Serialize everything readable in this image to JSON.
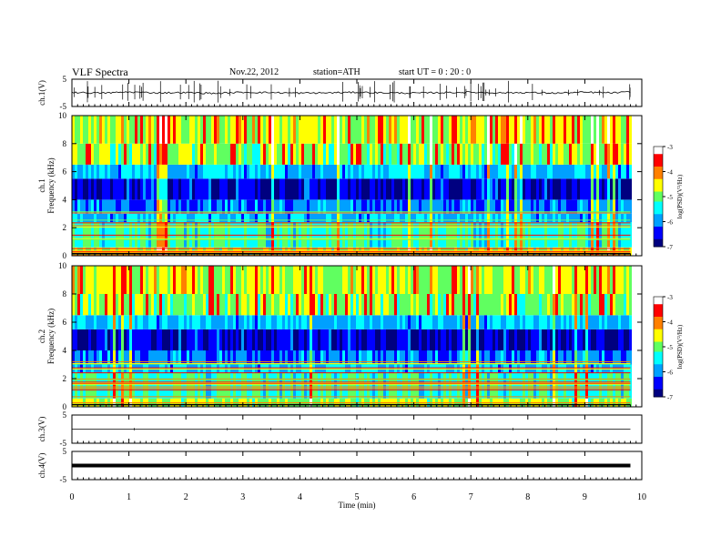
{
  "header": {
    "title": "VLF  Spectra",
    "date": "Nov.22, 2012",
    "station": "station=ATH",
    "start": "start  UT =   0  : 20 : 0"
  },
  "colors": {
    "background": "#ffffff",
    "colormap": [
      "#000080",
      "#0000ff",
      "#00a0ff",
      "#00ffff",
      "#60ff60",
      "#ffff00",
      "#ff8000",
      "#ff0000",
      "#ffffff"
    ]
  },
  "chart_data": [
    {
      "type": "line",
      "panel": "ch.1",
      "ylabel": "ch.1(V)",
      "ylim": [
        -5,
        5
      ],
      "yticks": [
        "5",
        "-5"
      ],
      "x": [
        0,
        0.5,
        1,
        1.5,
        2,
        2.5,
        3,
        3.5,
        4,
        4.5,
        5,
        5.5,
        6,
        6.5,
        7,
        7.5,
        8,
        8.5,
        9,
        9.5,
        9.8
      ],
      "values": [
        0.2,
        -0.1,
        0.3,
        0,
        0.1,
        -0.2,
        0.2,
        0.1,
        -0.1,
        0,
        0.2,
        0,
        -0.1,
        0.1,
        0.2,
        0,
        0.1,
        -0.1,
        0.2,
        0,
        0.3
      ]
    },
    {
      "type": "heatmap",
      "panel": "ch.1",
      "ylabel": "ch.1\nFrequency (kHz)",
      "ylim": [
        0,
        10
      ],
      "yticks": [
        "0",
        "2",
        "4",
        "6",
        "8",
        "10"
      ],
      "colorbar": {
        "label": "log(PSD)(V²/Hz)",
        "ticks": [
          "-3",
          "-4",
          "-5",
          "-6",
          "-7"
        ],
        "range": [
          -7,
          -3
        ]
      }
    },
    {
      "type": "heatmap",
      "panel": "ch.2",
      "ylabel": "ch.2\nFrequency (kHz)",
      "ylim": [
        0,
        10
      ],
      "yticks": [
        "0",
        "2",
        "4",
        "6",
        "8",
        "10"
      ],
      "colorbar": {
        "label": "log(PSD)(V²/Hz)",
        "ticks": [
          "-3",
          "-4",
          "-5",
          "-6",
          "-7"
        ],
        "range": [
          -7,
          -3
        ]
      }
    },
    {
      "type": "line",
      "panel": "ch.3",
      "ylabel": "ch.3(V)",
      "ylim": [
        -5,
        5
      ],
      "yticks": [
        "5",
        "-5"
      ],
      "x": [
        0,
        9.8
      ],
      "values": [
        0,
        0
      ]
    },
    {
      "type": "line",
      "panel": "ch.4",
      "ylabel": "ch.4(V)",
      "ylim": [
        -5,
        5
      ],
      "yticks": [
        "5",
        "-5"
      ],
      "x": [
        0,
        9.8
      ],
      "values": [
        0,
        0
      ]
    }
  ],
  "xaxis": {
    "label": "Time  (min)",
    "xlim": [
      0,
      10
    ],
    "ticks": [
      "0",
      "1",
      "2",
      "3",
      "4",
      "5",
      "6",
      "7",
      "8",
      "9",
      "10"
    ]
  }
}
